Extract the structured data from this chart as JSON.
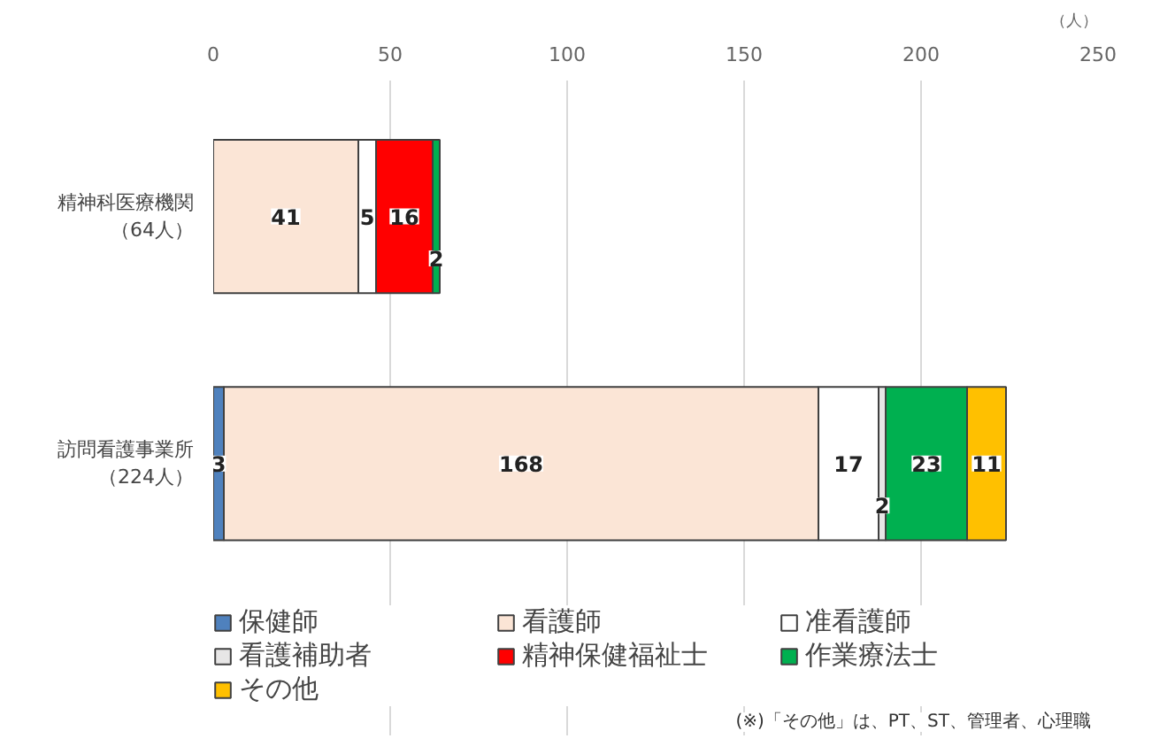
{
  "chart_data": {
    "type": "bar",
    "orientation": "horizontal",
    "stacked": true,
    "categories": [
      "精神科医療機関（64人）",
      "訪問看護事業所（224人）"
    ],
    "series": [
      {
        "name": "保健師",
        "color": "#4f81bd",
        "values": [
          null,
          3
        ]
      },
      {
        "name": "看護師",
        "color": "#fbe5d6",
        "values": [
          41,
          168
        ]
      },
      {
        "name": "准看護師",
        "color": "#ffffff",
        "values": [
          5,
          17
        ]
      },
      {
        "name": "看護補助者",
        "color": "#e7e6e6",
        "values": [
          null,
          2
        ]
      },
      {
        "name": "精神保健福祉士",
        "color": "#ff0000",
        "values": [
          16,
          null
        ]
      },
      {
        "name": "作業療法士",
        "color": "#00b050",
        "values": [
          2,
          23
        ]
      },
      {
        "name": "その他",
        "color": "#ffc000",
        "values": [
          null,
          11
        ]
      }
    ],
    "xlim": [
      0,
      250
    ],
    "xticks": [
      0,
      50,
      100,
      150,
      200,
      250
    ],
    "xlabel": "（人）",
    "grid": "x",
    "legend": "bottom",
    "data_labels": true,
    "annotations": [
      "(※)「その他」は、PT、ST、管理者、心理職"
    ]
  }
}
